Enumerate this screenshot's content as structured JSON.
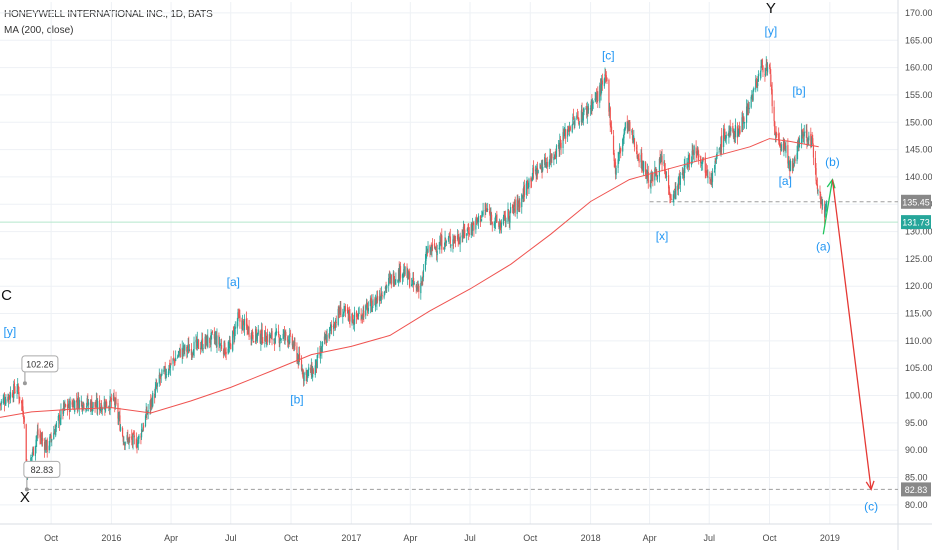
{
  "header": {
    "title": "HONEYWELL INTERNATIONAL INC., 1D, BATS",
    "indicator": "MA (200, close)"
  },
  "chart_data": {
    "type": "candlestick",
    "y_axis": {
      "ticks": [
        80,
        85,
        90,
        95,
        100,
        105,
        110,
        115,
        120,
        125,
        130,
        135,
        140,
        145,
        150,
        155,
        160,
        165,
        170
      ],
      "tick_labels": [
        "80.00",
        "85.00",
        "90.00",
        "95.00",
        "100.00",
        "105.00",
        "110.00",
        "115.00",
        "120.00",
        "125.00",
        "130.00",
        "135.00",
        "140.00",
        "145.00",
        "150.00",
        "155.00",
        "160.00",
        "165.00",
        "170.00"
      ],
      "range": [
        76.5,
        172.0
      ]
    },
    "x_axis": {
      "range": [
        "2015-07-15",
        "2019-04-15"
      ],
      "ticks": [
        {
          "date": "2015-10-01",
          "label": "Oct"
        },
        {
          "date": "2016-01-01",
          "label": "2016"
        },
        {
          "date": "2016-04-01",
          "label": "Apr"
        },
        {
          "date": "2016-07-01",
          "label": "Jul"
        },
        {
          "date": "2016-10-01",
          "label": "Oct"
        },
        {
          "date": "2017-01-01",
          "label": "2017"
        },
        {
          "date": "2017-04-01",
          "label": "Apr"
        },
        {
          "date": "2017-07-01",
          "label": "Jul"
        },
        {
          "date": "2017-10-01",
          "label": "Oct"
        },
        {
          "date": "2018-01-01",
          "label": "2018"
        },
        {
          "date": "2018-04-01",
          "label": "Apr"
        },
        {
          "date": "2018-07-01",
          "label": "Jul"
        },
        {
          "date": "2018-10-01",
          "label": "Oct"
        },
        {
          "date": "2019-01-01",
          "label": "2019"
        }
      ]
    },
    "price_path": [
      [
        "2015-07-15",
        98.5
      ],
      [
        "2015-08-10",
        101.5
      ],
      [
        "2015-08-20",
        97.0
      ],
      [
        "2015-08-25",
        85.5
      ],
      [
        "2015-09-10",
        93.0
      ],
      [
        "2015-09-25",
        90.5
      ],
      [
        "2015-10-20",
        97.5
      ],
      [
        "2015-11-10",
        99.0
      ],
      [
        "2015-12-10",
        98.0
      ],
      [
        "2016-01-05",
        99.0
      ],
      [
        "2016-01-20",
        92.0
      ],
      [
        "2016-02-10",
        91.5
      ],
      [
        "2016-02-25",
        97.0
      ],
      [
        "2016-03-15",
        103.0
      ],
      [
        "2016-04-15",
        108.0
      ],
      [
        "2016-05-10",
        109.0
      ],
      [
        "2016-06-05",
        110.5
      ],
      [
        "2016-06-27",
        108.0
      ],
      [
        "2016-07-12",
        114.0
      ],
      [
        "2016-08-05",
        111.0
      ],
      [
        "2016-09-05",
        110.5
      ],
      [
        "2016-09-25",
        111.0
      ],
      [
        "2016-10-05",
        109.0
      ],
      [
        "2016-10-20",
        104.0
      ],
      [
        "2016-11-05",
        104.5
      ],
      [
        "2016-11-20",
        109.5
      ],
      [
        "2016-12-15",
        115.5
      ],
      [
        "2017-01-05",
        114.0
      ],
      [
        "2017-02-01",
        116.5
      ],
      [
        "2017-03-01",
        121.0
      ],
      [
        "2017-03-20",
        123.0
      ],
      [
        "2017-04-10",
        119.5
      ],
      [
        "2017-04-20",
        121.0
      ],
      [
        "2017-04-25",
        126.0
      ],
      [
        "2017-05-20",
        128.0
      ],
      [
        "2017-06-15",
        129.0
      ],
      [
        "2017-07-10",
        131.5
      ],
      [
        "2017-07-25",
        134.0
      ],
      [
        "2017-08-15",
        131.0
      ],
      [
        "2017-09-15",
        135.5
      ],
      [
        "2017-10-01",
        140.0
      ],
      [
        "2017-11-05",
        144.0
      ],
      [
        "2017-12-01",
        149.5
      ],
      [
        "2017-12-25",
        152.0
      ],
      [
        "2018-01-10",
        154.5
      ],
      [
        "2018-01-25",
        158.0
      ],
      [
        "2018-02-08",
        141.0
      ],
      [
        "2018-02-25",
        150.0
      ],
      [
        "2018-03-15",
        144.0
      ],
      [
        "2018-04-02",
        139.0
      ],
      [
        "2018-04-20",
        143.0
      ],
      [
        "2018-05-05",
        136.0
      ],
      [
        "2018-05-25",
        141.5
      ],
      [
        "2018-06-10",
        145.5
      ],
      [
        "2018-06-25",
        142.0
      ],
      [
        "2018-07-05",
        140.0
      ],
      [
        "2018-07-22",
        147.5
      ],
      [
        "2018-08-15",
        148.5
      ],
      [
        "2018-09-05",
        155.0
      ],
      [
        "2018-09-20",
        160.5
      ],
      [
        "2018-10-01",
        159.0
      ],
      [
        "2018-10-10",
        147.0
      ],
      [
        "2018-10-25",
        145.0
      ],
      [
        "2018-11-05",
        140.5
      ],
      [
        "2018-11-15",
        147.0
      ],
      [
        "2018-11-25",
        148.0
      ],
      [
        "2018-12-05",
        146.0
      ],
      [
        "2018-12-15",
        137.0
      ],
      [
        "2018-12-24",
        133.0
      ],
      [
        "2018-12-27",
        136.0
      ]
    ],
    "ma200": [
      [
        "2015-07-15",
        96.0
      ],
      [
        "2015-09-01",
        97.0
      ],
      [
        "2015-11-01",
        97.5
      ],
      [
        "2016-01-01",
        97.8
      ],
      [
        "2016-03-01",
        96.8
      ],
      [
        "2016-05-01",
        99.0
      ],
      [
        "2016-07-01",
        101.5
      ],
      [
        "2016-09-01",
        104.5
      ],
      [
        "2016-11-01",
        107.5
      ],
      [
        "2017-01-01",
        109.0
      ],
      [
        "2017-03-01",
        111.0
      ],
      [
        "2017-05-01",
        115.5
      ],
      [
        "2017-07-01",
        119.5
      ],
      [
        "2017-09-01",
        124.0
      ],
      [
        "2017-11-01",
        129.5
      ],
      [
        "2018-01-01",
        135.5
      ],
      [
        "2018-03-01",
        139.5
      ],
      [
        "2018-05-01",
        141.5
      ],
      [
        "2018-07-01",
        143.5
      ],
      [
        "2018-09-01",
        145.5
      ],
      [
        "2018-10-01",
        147.0
      ],
      [
        "2018-11-01",
        146.5
      ],
      [
        "2018-12-15",
        145.5
      ]
    ],
    "horizontal_lines": [
      {
        "price": 135.45,
        "style": "dashed",
        "color": "#9e9e9e",
        "label": "135.45",
        "start": "2018-04-01",
        "label_bg": "#888888"
      },
      {
        "price": 131.73,
        "style": "solid",
        "color": "#b5e7cc",
        "label": "131.73",
        "start": "2015-07-15",
        "label_bg": "#26a69a"
      },
      {
        "price": 82.83,
        "style": "dashed",
        "color": "#9e9e9e",
        "label": "82.83",
        "start": "2015-08-25",
        "label_bg": "#888888"
      }
    ],
    "wave_labels": [
      {
        "text": "Y",
        "date": "2018-10-03",
        "price": 170.0,
        "color": "#111111",
        "size": 15
      },
      {
        "text": "[y]",
        "date": "2018-10-03",
        "price": 166.0,
        "color": "#2196f3",
        "size": 12
      },
      {
        "text": "[c]",
        "date": "2018-01-28",
        "price": 161.5,
        "color": "#2196f3",
        "size": 12
      },
      {
        "text": "[b]",
        "date": "2018-11-15",
        "price": 155.0,
        "color": "#2196f3",
        "size": 12
      },
      {
        "text": "[a]",
        "date": "2018-10-25",
        "price": 138.5,
        "color": "#2196f3",
        "size": 12
      },
      {
        "text": "[x]",
        "date": "2018-04-20",
        "price": 128.5,
        "color": "#2196f3",
        "size": 12
      },
      {
        "text": "(b)",
        "date": "2019-01-05",
        "price": 142.0,
        "color": "#2196f3",
        "size": 12
      },
      {
        "text": "(a)",
        "date": "2018-12-22",
        "price": 126.5,
        "color": "#2196f3",
        "size": 12
      },
      {
        "text": "(c)",
        "date": "2019-03-05",
        "price": 79.0,
        "color": "#2196f3",
        "size": 12
      },
      {
        "text": "[a]",
        "date": "2016-07-05",
        "price": 120.0,
        "color": "#2196f3",
        "size": 12
      },
      {
        "text": "[b]",
        "date": "2016-10-10",
        "price": 98.5,
        "color": "#2196f3",
        "size": 12
      },
      {
        "text": "C",
        "date": "2015-07-25",
        "price": 117.5,
        "color": "#111111",
        "size": 15
      },
      {
        "text": "[y]",
        "date": "2015-07-30",
        "price": 111.0,
        "color": "#2196f3",
        "size": 12
      },
      {
        "text": "X",
        "date": "2015-08-22",
        "price": 80.5,
        "color": "#111111",
        "size": 15
      }
    ],
    "callouts": [
      {
        "text": "102.26",
        "date": "2015-08-22",
        "price": 102.26,
        "label_price": 105.8
      },
      {
        "text": "82.83",
        "date": "2015-08-25",
        "price": 82.83,
        "label_price": 86.5
      }
    ],
    "arrows": [
      {
        "color": "#22c55e",
        "points": [
          [
            "2018-12-22",
            129.5
          ],
          [
            "2019-01-05",
            139.5
          ]
        ]
      },
      {
        "color": "#e53935",
        "points": [
          [
            "2019-01-05",
            139.5
          ],
          [
            "2019-03-05",
            82.83
          ]
        ]
      }
    ],
    "colors": {
      "up": "#26a69a",
      "down": "#ef5350",
      "ma": "#ef5350",
      "grid": "#eef1f5",
      "axis_text": "#4a4a4a"
    }
  }
}
